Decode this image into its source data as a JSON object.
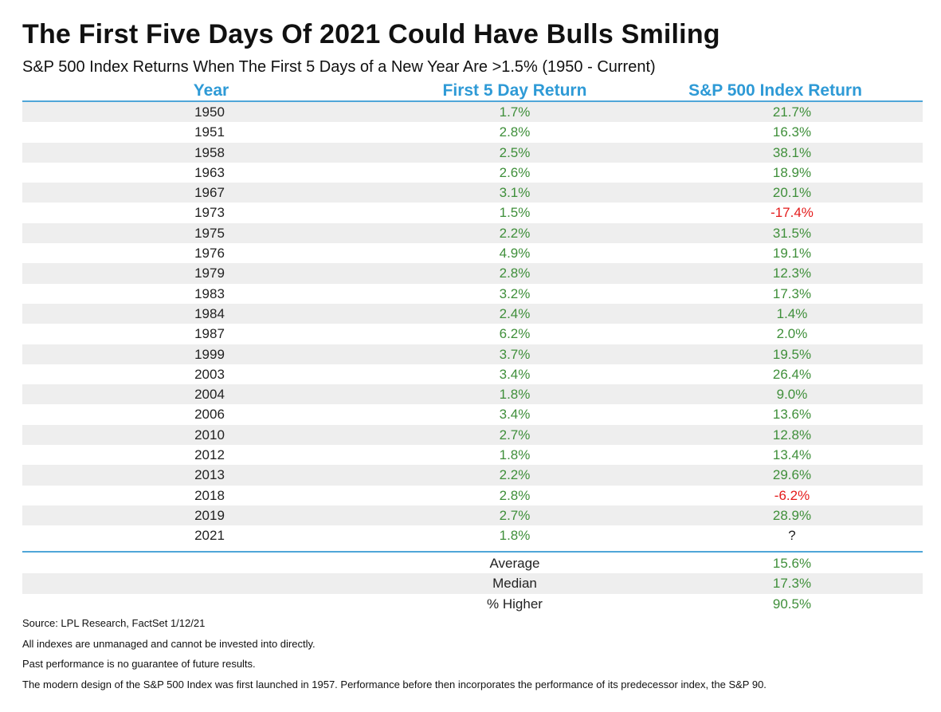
{
  "title": "The First Five Days Of 2021 Could Have Bulls Smiling",
  "subtitle": "S&P 500 Index Returns When The First 5 Days of a New Year Are >1.5% (1950 - Current)",
  "colors": {
    "header": "#2e9ad6",
    "positive": "#3f8f3a",
    "negative": "#e41a1a",
    "shade": "#eeeeee"
  },
  "chart_data": {
    "type": "table",
    "columns": [
      "Year",
      "First 5 Day Return",
      "S&P 500 Index Return"
    ],
    "rows": [
      [
        "1950",
        "1.7%",
        "21.7%"
      ],
      [
        "1951",
        "2.8%",
        "16.3%"
      ],
      [
        "1958",
        "2.5%",
        "38.1%"
      ],
      [
        "1963",
        "2.6%",
        "18.9%"
      ],
      [
        "1967",
        "3.1%",
        "20.1%"
      ],
      [
        "1973",
        "1.5%",
        "-17.4%"
      ],
      [
        "1975",
        "2.2%",
        "31.5%"
      ],
      [
        "1976",
        "4.9%",
        "19.1%"
      ],
      [
        "1979",
        "2.8%",
        "12.3%"
      ],
      [
        "1983",
        "3.2%",
        "17.3%"
      ],
      [
        "1984",
        "2.4%",
        "1.4%"
      ],
      [
        "1987",
        "6.2%",
        "2.0%"
      ],
      [
        "1999",
        "3.7%",
        "19.5%"
      ],
      [
        "2003",
        "3.4%",
        "26.4%"
      ],
      [
        "2004",
        "1.8%",
        "9.0%"
      ],
      [
        "2006",
        "3.4%",
        "13.6%"
      ],
      [
        "2010",
        "2.7%",
        "12.8%"
      ],
      [
        "2012",
        "1.8%",
        "13.4%"
      ],
      [
        "2013",
        "2.2%",
        "29.6%"
      ],
      [
        "2018",
        "2.8%",
        "-6.2%"
      ],
      [
        "2019",
        "2.7%",
        "28.9%"
      ],
      [
        "2021",
        "1.8%",
        "?"
      ]
    ],
    "summary": [
      {
        "label": "Average",
        "value": "15.6%"
      },
      {
        "label": "Median",
        "value": "17.3%"
      },
      {
        "label": "% Higher",
        "value": "90.5%"
      }
    ]
  },
  "notes": [
    "Source: LPL Research, FactSet 1/12/21",
    "All indexes are unmanaged and cannot be invested into directly.",
    "Past performance is no guarantee of future results.",
    "The modern design of the S&P 500 Index was first launched in 1957. Performance before then incorporates the performance of its predecessor index, the S&P 90."
  ]
}
